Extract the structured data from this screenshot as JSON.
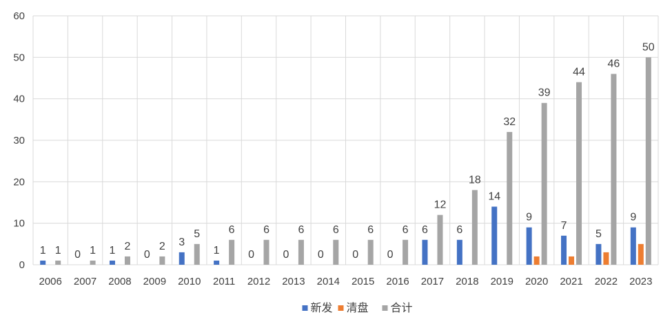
{
  "chart_data": {
    "type": "bar",
    "categories": [
      "2006",
      "2007",
      "2008",
      "2009",
      "2010",
      "2011",
      "2012",
      "2013",
      "2014",
      "2015",
      "2016",
      "2017",
      "2018",
      "2019",
      "2020",
      "2021",
      "2022",
      "2023"
    ],
    "series": [
      {
        "name": "新发",
        "color": "#4472C4",
        "values": [
          1,
          0,
          1,
          0,
          3,
          1,
          0,
          0,
          0,
          0,
          0,
          6,
          6,
          14,
          9,
          7,
          5,
          9
        ],
        "labels": [
          "1",
          "0",
          "1",
          "0",
          "3",
          "1",
          "0",
          "0",
          "0",
          "0",
          "0",
          "6",
          "6",
          "14",
          "9",
          "7",
          "5",
          "9"
        ]
      },
      {
        "name": "清盘",
        "color": "#ED7D31",
        "values": [
          0,
          0,
          0,
          0,
          0,
          0,
          0,
          0,
          0,
          0,
          0,
          0,
          0,
          0,
          2,
          2,
          3,
          5
        ],
        "labels": []
      },
      {
        "name": "合计",
        "color": "#A5A5A5",
        "values": [
          1,
          1,
          2,
          2,
          5,
          6,
          6,
          6,
          6,
          6,
          6,
          12,
          18,
          32,
          39,
          44,
          46,
          50
        ],
        "labels": [
          "1",
          "1",
          "2",
          "2",
          "5",
          "6",
          "6",
          "6",
          "6",
          "6",
          "6",
          "12",
          "18",
          "32",
          "39",
          "44",
          "46",
          "50"
        ]
      }
    ],
    "ylim": [
      0,
      60
    ],
    "yticks": [
      "0",
      "10",
      "20",
      "30",
      "40",
      "50",
      "60"
    ],
    "grid": true,
    "legend_position": "bottom",
    "title": "",
    "xlabel": "",
    "ylabel": ""
  }
}
